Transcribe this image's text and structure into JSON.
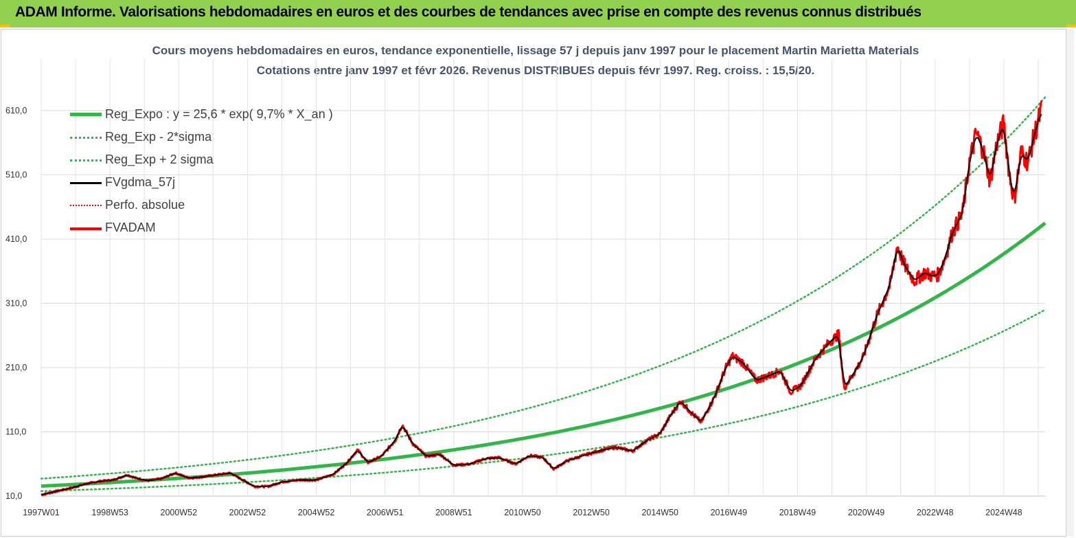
{
  "banner": {
    "title": "ADAM Informe. Valorisations hebdomadaires en euros et des courbes de tendances avec prise en compte des revenus connus distribués"
  },
  "colors": {
    "banner": "#92d050",
    "accent": "#ffc000",
    "trend": "#33b54a",
    "price": "#ff0000",
    "smooth": "#000000"
  },
  "chart_data": {
    "type": "line",
    "title": "Cours moyens hebdomadaires en euros, tendance exponentielle, lissage 57 j depuis janv 1997  pour le placement Martin Marietta Materials",
    "subtitle": "Cotations entre janv 1997 et févr 2026. Revenus DISTRIBUES depuis févr 1997. Reg. croiss. : 15,5/20.",
    "x_tick_labels": [
      "1997W01",
      "1998W53",
      "2000W52",
      "2002W52",
      "2004W52",
      "2006W51",
      "2008W51",
      "2010W50",
      "2012W50",
      "2014W50",
      "2016W49",
      "2018W49",
      "2020W49",
      "2022W48",
      "2024W48"
    ],
    "y_tick_labels": [
      "10,0",
      "110,0",
      "210,0",
      "310,0",
      "410,0",
      "510,0",
      "610,0"
    ],
    "y_ticks": [
      10,
      110,
      210,
      310,
      410,
      510,
      610
    ],
    "xlim": [
      1997.0,
      2026.2
    ],
    "ylim": [
      10,
      690
    ],
    "grid": true,
    "legend_position": "top-left",
    "regression": {
      "a": 25.6,
      "rate": 0.097,
      "sigma_factor": 1.45
    },
    "series": [
      {
        "name": "Reg_Expo : y = 25,6 * exp( 9,7% *  X_an )",
        "style": "solid-thick",
        "color": "#33b54a"
      },
      {
        "name": "Reg_Exp - 2*sigma",
        "style": "dotted",
        "color": "#33b54a"
      },
      {
        "name": "Reg_Exp + 2 sigma",
        "style": "dotted",
        "color": "#33b54a"
      },
      {
        "name": "FVgdma_57j",
        "style": "solid",
        "color": "#000000"
      },
      {
        "name": "Perfo. absolue",
        "style": "dotted",
        "color": "#ff0000"
      },
      {
        "name": "FVADAM",
        "style": "solid-thick",
        "color": "#ff0000"
      }
    ],
    "price_points": [
      [
        1997.0,
        12
      ],
      [
        1997.4,
        17
      ],
      [
        1997.9,
        23
      ],
      [
        1998.3,
        29
      ],
      [
        1998.7,
        33
      ],
      [
        1999.1,
        35
      ],
      [
        1999.5,
        43
      ],
      [
        1999.75,
        38
      ],
      [
        2000.1,
        34
      ],
      [
        2000.5,
        37
      ],
      [
        2000.9,
        46
      ],
      [
        2001.3,
        38
      ],
      [
        2001.7,
        40
      ],
      [
        2002.1,
        43
      ],
      [
        2002.5,
        46
      ],
      [
        2002.8,
        37
      ],
      [
        2003.2,
        25
      ],
      [
        2003.6,
        25
      ],
      [
        2004.0,
        32
      ],
      [
        2004.5,
        35
      ],
      [
        2005.0,
        35
      ],
      [
        2005.5,
        44
      ],
      [
        2005.9,
        62
      ],
      [
        2006.2,
        82
      ],
      [
        2006.5,
        62
      ],
      [
        2006.9,
        72
      ],
      [
        2007.3,
        97
      ],
      [
        2007.5,
        121
      ],
      [
        2007.8,
        92
      ],
      [
        2008.2,
        72
      ],
      [
        2008.6,
        75
      ],
      [
        2009.0,
        58
      ],
      [
        2009.5,
        60
      ],
      [
        2009.9,
        68
      ],
      [
        2010.3,
        70
      ],
      [
        2010.8,
        60
      ],
      [
        2011.2,
        73
      ],
      [
        2011.6,
        70
      ],
      [
        2011.9,
        52
      ],
      [
        2012.3,
        65
      ],
      [
        2012.7,
        72
      ],
      [
        2013.2,
        80
      ],
      [
        2013.7,
        86
      ],
      [
        2014.2,
        80
      ],
      [
        2014.6,
        96
      ],
      [
        2015.0,
        107
      ],
      [
        2015.3,
        135
      ],
      [
        2015.6,
        158
      ],
      [
        2015.9,
        140
      ],
      [
        2016.2,
        125
      ],
      [
        2016.6,
        166
      ],
      [
        2016.9,
        208
      ],
      [
        2017.1,
        228
      ],
      [
        2017.4,
        218
      ],
      [
        2017.8,
        190
      ],
      [
        2018.2,
        198
      ],
      [
        2018.5,
        205
      ],
      [
        2018.8,
        172
      ],
      [
        2019.1,
        182
      ],
      [
        2019.5,
        222
      ],
      [
        2019.9,
        248
      ],
      [
        2020.2,
        262
      ],
      [
        2020.35,
        178
      ],
      [
        2020.6,
        198
      ],
      [
        2020.9,
        225
      ],
      [
        2021.3,
        290
      ],
      [
        2021.7,
        340
      ],
      [
        2021.9,
        400
      ],
      [
        2022.1,
        370
      ],
      [
        2022.4,
        345
      ],
      [
        2022.7,
        358
      ],
      [
        2022.9,
        352
      ],
      [
        2023.1,
        355
      ],
      [
        2023.3,
        382
      ],
      [
        2023.5,
        420
      ],
      [
        2023.8,
        450
      ],
      [
        2024.0,
        530
      ],
      [
        2024.2,
        575
      ],
      [
        2024.4,
        548
      ],
      [
        2024.6,
        500
      ],
      [
        2024.8,
        560
      ],
      [
        2025.0,
        590
      ],
      [
        2025.15,
        515
      ],
      [
        2025.3,
        470
      ],
      [
        2025.5,
        545
      ],
      [
        2025.7,
        530
      ],
      [
        2025.9,
        575
      ],
      [
        2026.1,
        612
      ]
    ]
  }
}
